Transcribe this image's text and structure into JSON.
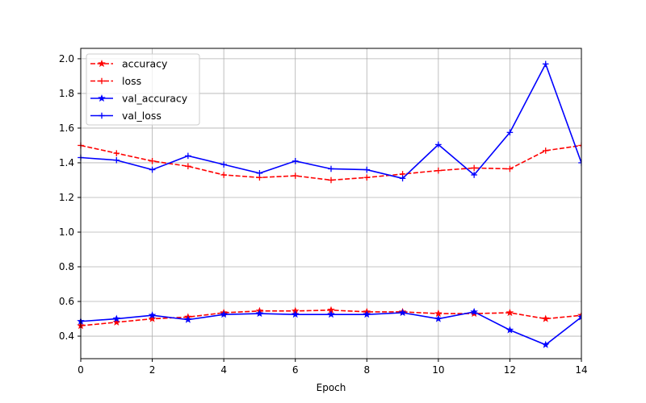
{
  "chart_data": {
    "type": "line",
    "title": "",
    "xlabel": "Epoch",
    "ylabel": "",
    "xlim": [
      0,
      14
    ],
    "ylim": [
      0.27,
      2.06
    ],
    "grid": true,
    "legend_position": "top-left",
    "x": [
      0,
      1,
      2,
      3,
      4,
      5,
      6,
      7,
      8,
      9,
      10,
      11,
      12,
      13,
      14
    ],
    "x_ticks": [
      0,
      2,
      4,
      6,
      8,
      10,
      12,
      14
    ],
    "y_ticks": [
      0.4,
      0.6,
      0.8,
      1.0,
      1.2,
      1.4,
      1.6,
      1.8,
      2.0
    ],
    "x_tick_labels": [
      "0",
      "2",
      "4",
      "6",
      "8",
      "10",
      "12",
      "14"
    ],
    "y_tick_labels": [
      "0.4",
      "0.6",
      "0.8",
      "1.0",
      "1.2",
      "1.4",
      "1.6",
      "1.8",
      "2.0"
    ],
    "series": [
      {
        "name": "accuracy",
        "color": "#ff0000",
        "line_style": "dashed",
        "marker": "star",
        "values": [
          0.46,
          0.48,
          0.5,
          0.51,
          0.535,
          0.545,
          0.545,
          0.55,
          0.54,
          0.54,
          0.53,
          0.53,
          0.535,
          0.5,
          0.52
        ]
      },
      {
        "name": "loss",
        "color": "#ff0000",
        "line_style": "dashed",
        "marker": "plus",
        "values": [
          1.5,
          1.455,
          1.41,
          1.38,
          1.33,
          1.315,
          1.325,
          1.3,
          1.315,
          1.335,
          1.355,
          1.37,
          1.365,
          1.47,
          1.5
        ]
      },
      {
        "name": "val_accuracy",
        "color": "#0000ff",
        "line_style": "solid",
        "marker": "star",
        "values": [
          0.485,
          0.5,
          0.52,
          0.495,
          0.525,
          0.53,
          0.525,
          0.525,
          0.525,
          0.535,
          0.5,
          0.54,
          0.435,
          0.35,
          0.51
        ]
      },
      {
        "name": "val_loss",
        "color": "#0000ff",
        "line_style": "solid",
        "marker": "plus",
        "values": [
          1.43,
          1.415,
          1.36,
          1.44,
          1.39,
          1.34,
          1.41,
          1.365,
          1.36,
          1.31,
          1.505,
          1.33,
          1.575,
          1.97,
          1.4
        ]
      }
    ]
  }
}
